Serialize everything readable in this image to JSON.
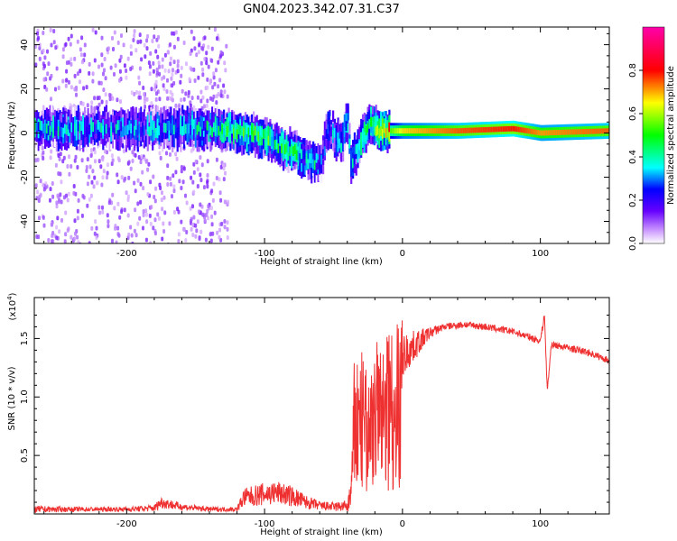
{
  "chart_data": [
    {
      "type": "heatmap",
      "title": "GN04.2023.342.07.31.C37",
      "xlabel": "Height of straight line (km)",
      "ylabel": "Frequency (Hz)",
      "xlim": [
        -267,
        150
      ],
      "ylim": [
        -50,
        48
      ],
      "xticks": [
        -200,
        -100,
        0,
        100
      ],
      "xtick_labels": [
        "-200",
        "-100",
        "0",
        "100"
      ],
      "yticks": [
        -40,
        -20,
        0,
        20,
        40
      ],
      "ytick_labels": [
        "-40",
        "-20",
        "0",
        "20",
        "40"
      ],
      "colorbar": {
        "label": "Normalized spectral amplitude",
        "range": [
          0,
          1
        ],
        "ticks": [
          0.0,
          0.2,
          0.4,
          0.6,
          0.8
        ],
        "tick_labels": [
          "0.0",
          "0.2",
          "0.4",
          "0.6",
          "0.8"
        ],
        "colormap": "rainbow (white → violet → blue → cyan → green → yellow → red → magenta)"
      },
      "ridge": [
        {
          "x": -265,
          "f": 2,
          "amp": 0.35
        },
        {
          "x": -230,
          "f": 2,
          "amp": 0.3
        },
        {
          "x": -200,
          "f": 2,
          "amp": 0.3
        },
        {
          "x": -170,
          "f": 2,
          "amp": 0.3
        },
        {
          "x": -140,
          "f": 2,
          "amp": 0.35
        },
        {
          "x": -120,
          "f": 1,
          "amp": 0.45
        },
        {
          "x": -100,
          "f": -2,
          "amp": 0.45
        },
        {
          "x": -85,
          "f": -7,
          "amp": 0.4
        },
        {
          "x": -70,
          "f": -11,
          "amp": 0.35
        },
        {
          "x": -60,
          "f": -14,
          "amp": 0.3
        },
        {
          "x": -55,
          "f": 3,
          "amp": 0.25
        },
        {
          "x": -45,
          "f": -5,
          "amp": 0.3
        },
        {
          "x": -38,
          "f": -14,
          "amp": 0.3
        },
        {
          "x": -40,
          "f": 6,
          "amp": 0.35
        },
        {
          "x": -25,
          "f": 4,
          "amp": 0.45
        },
        {
          "x": -15,
          "f": 1,
          "amp": 0.6
        },
        {
          "x": 0,
          "f": 1,
          "amp": 0.85
        },
        {
          "x": 40,
          "f": 1,
          "amp": 0.95
        },
        {
          "x": 80,
          "f": 2,
          "amp": 1.0
        },
        {
          "x": 100,
          "f": 0,
          "amp": 0.9
        },
        {
          "x": 150,
          "f": 1,
          "amp": 0.95
        }
      ]
    },
    {
      "type": "line",
      "xlabel": "Height of straight line (km)",
      "ylabel": "SNR (10 * v/v)",
      "y_multiplier": "(x10",
      "y_multiplier_exp": "4",
      "xlim": [
        -267,
        150
      ],
      "ylim": [
        0,
        1.85
      ],
      "xticks": [
        -200,
        -100,
        0,
        100
      ],
      "xtick_labels": [
        "-200",
        "-100",
        "0",
        "100"
      ],
      "yticks": [
        0.5,
        1.0,
        1.5
      ],
      "ytick_labels": [
        "0.5",
        "1.0",
        "1.5"
      ],
      "series": [
        {
          "color": "#ef3030",
          "x": [
            -267,
            -240,
            -200,
            -180,
            -175,
            -160,
            -140,
            -120,
            -115,
            -100,
            -90,
            -80,
            -70,
            -60,
            -50,
            -40,
            -37,
            -35,
            -30,
            -25,
            -20,
            -15,
            -10,
            -5,
            0,
            10,
            20,
            30,
            45,
            60,
            80,
            100,
            103,
            105,
            108,
            120,
            135,
            150
          ],
          "y": [
            0.04,
            0.04,
            0.04,
            0.05,
            0.1,
            0.06,
            0.04,
            0.04,
            0.14,
            0.17,
            0.18,
            0.15,
            0.1,
            0.07,
            0.06,
            0.07,
            0.3,
            1.0,
            1.1,
            0.9,
            1.2,
            1.1,
            1.3,
            1.3,
            1.35,
            1.45,
            1.55,
            1.6,
            1.62,
            1.6,
            1.56,
            1.48,
            1.7,
            1.05,
            1.45,
            1.42,
            1.38,
            1.31
          ],
          "noise": [
            0.03,
            0.02,
            0.02,
            0.03,
            0.05,
            0.03,
            0.02,
            0.02,
            0.08,
            0.1,
            0.1,
            0.09,
            0.06,
            0.04,
            0.04,
            0.05,
            0.4,
            0.8,
            0.8,
            0.8,
            0.6,
            0.5,
            0.4,
            0.35,
            0.2,
            0.12,
            0.05,
            0.03,
            0.03,
            0.03,
            0.03,
            0.03,
            0.03,
            0.03,
            0.03,
            0.03,
            0.03,
            0.03
          ]
        }
      ]
    }
  ]
}
